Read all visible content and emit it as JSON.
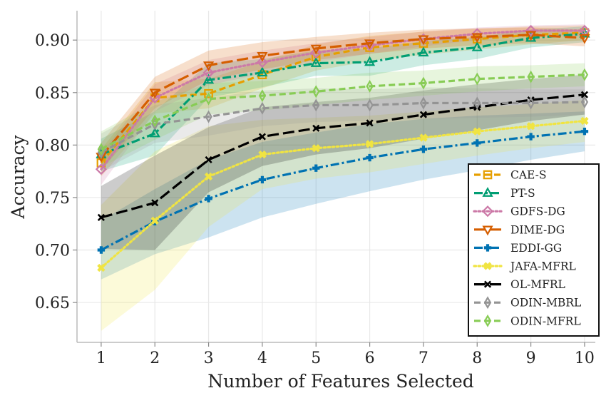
{
  "chart_data": {
    "type": "line",
    "title": "",
    "xlabel": "Number of Features Selected",
    "ylabel": "Accuracy",
    "x": [
      1,
      2,
      3,
      4,
      5,
      6,
      7,
      8,
      9,
      10
    ],
    "xlim": [
      0.55,
      10.2
    ],
    "ylim": [
      0.612,
      0.928
    ],
    "x_ticks": [
      "1",
      "2",
      "3",
      "4",
      "5",
      "6",
      "7",
      "8",
      "9",
      "10"
    ],
    "y_ticks": [
      0.65,
      0.7,
      0.75,
      0.8,
      0.85,
      0.9
    ],
    "y_tick_labels": [
      "0.65",
      "0.70",
      "0.75",
      "0.80",
      "0.85",
      "0.90"
    ],
    "grid": true,
    "legend_position": "lower-right",
    "series": [
      {
        "name": "CAE-S",
        "color": "#e69f00",
        "dash": "dashed",
        "marker": "square",
        "values": [
          0.783,
          0.845,
          0.849,
          0.867,
          0.884,
          0.893,
          0.897,
          0.901,
          0.905,
          0.907
        ],
        "lower": [
          0.77,
          0.83,
          0.835,
          0.854,
          0.871,
          0.88,
          0.886,
          0.891,
          0.896,
          0.9
        ],
        "upper": [
          0.796,
          0.86,
          0.863,
          0.88,
          0.896,
          0.904,
          0.908,
          0.911,
          0.913,
          0.914
        ]
      },
      {
        "name": "PT-S",
        "color": "#009e73",
        "dash": "dashdot",
        "marker": "triangle-up",
        "values": [
          0.791,
          0.811,
          0.862,
          0.869,
          0.878,
          0.879,
          0.888,
          0.893,
          0.902,
          0.906
        ],
        "lower": [
          0.775,
          0.79,
          0.845,
          0.855,
          0.866,
          0.866,
          0.876,
          0.882,
          0.893,
          0.898
        ],
        "upper": [
          0.806,
          0.832,
          0.878,
          0.882,
          0.89,
          0.892,
          0.899,
          0.903,
          0.91,
          0.913
        ]
      },
      {
        "name": "GDFS-DG",
        "color": "#cc79a7",
        "dash": "dotted",
        "marker": "diamond",
        "values": [
          0.777,
          0.845,
          0.869,
          0.879,
          0.888,
          0.895,
          0.901,
          0.906,
          0.909,
          0.909
        ],
        "lower": [
          0.762,
          0.832,
          0.857,
          0.868,
          0.879,
          0.887,
          0.894,
          0.9,
          0.904,
          0.904
        ],
        "upper": [
          0.792,
          0.858,
          0.881,
          0.89,
          0.897,
          0.903,
          0.908,
          0.912,
          0.914,
          0.915
        ]
      },
      {
        "name": "DIME-DG",
        "color": "#d55e00",
        "dash": "longdash",
        "marker": "triangle-down",
        "values": [
          0.789,
          0.85,
          0.876,
          0.885,
          0.892,
          0.897,
          0.901,
          0.903,
          0.905,
          0.902
        ],
        "lower": [
          0.776,
          0.835,
          0.862,
          0.872,
          0.881,
          0.887,
          0.892,
          0.895,
          0.897,
          0.894
        ],
        "upper": [
          0.802,
          0.865,
          0.89,
          0.898,
          0.903,
          0.907,
          0.91,
          0.911,
          0.912,
          0.91
        ]
      },
      {
        "name": "EDDI-GG",
        "color": "#0072b2",
        "dash": "dashdot",
        "marker": "plus",
        "values": [
          0.7,
          0.727,
          0.749,
          0.767,
          0.778,
          0.788,
          0.796,
          0.802,
          0.808,
          0.813
        ],
        "lower": [
          0.672,
          0.696,
          0.712,
          0.731,
          0.744,
          0.756,
          0.767,
          0.776,
          0.786,
          0.794
        ],
        "upper": [
          0.728,
          0.758,
          0.786,
          0.803,
          0.812,
          0.82,
          0.825,
          0.828,
          0.83,
          0.832
        ]
      },
      {
        "name": "JAFA-MFRL",
        "color": "#f0e442",
        "dash": "dotted",
        "marker": "cross",
        "values": [
          0.683,
          0.728,
          0.77,
          0.791,
          0.797,
          0.801,
          0.807,
          0.813,
          0.818,
          0.823
        ],
        "lower": [
          0.623,
          0.662,
          0.722,
          0.758,
          0.768,
          0.774,
          0.782,
          0.79,
          0.797,
          0.803
        ],
        "upper": [
          0.743,
          0.794,
          0.818,
          0.824,
          0.826,
          0.828,
          0.832,
          0.836,
          0.839,
          0.843
        ]
      },
      {
        "name": "OL-MFRL",
        "color": "#000000",
        "dash": "longdash",
        "marker": "x",
        "values": [
          0.731,
          0.745,
          0.786,
          0.808,
          0.816,
          0.821,
          0.829,
          0.836,
          0.843,
          0.848
        ],
        "lower": [
          0.701,
          0.7,
          0.755,
          0.78,
          0.791,
          0.797,
          0.806,
          0.814,
          0.823,
          0.829
        ],
        "upper": [
          0.761,
          0.79,
          0.817,
          0.836,
          0.841,
          0.845,
          0.852,
          0.858,
          0.863,
          0.867
        ]
      },
      {
        "name": "ODIN-MBRL",
        "color": "#949494",
        "dash": "dashed",
        "marker": "thin-diamond",
        "values": [
          0.793,
          0.82,
          0.827,
          0.835,
          0.838,
          0.838,
          0.84,
          0.84,
          0.84,
          0.841
        ],
        "lower": [
          0.775,
          0.802,
          0.809,
          0.818,
          0.822,
          0.823,
          0.825,
          0.826,
          0.827,
          0.829
        ],
        "upper": [
          0.811,
          0.838,
          0.845,
          0.852,
          0.854,
          0.853,
          0.855,
          0.854,
          0.853,
          0.853
        ]
      },
      {
        "name": "ODIN-MFRL",
        "color": "#88cc55",
        "dash": "dashed",
        "marker": "thin-diamond",
        "values": [
          0.796,
          0.823,
          0.844,
          0.847,
          0.851,
          0.856,
          0.859,
          0.863,
          0.865,
          0.867
        ],
        "lower": [
          0.779,
          0.805,
          0.829,
          0.833,
          0.838,
          0.843,
          0.847,
          0.851,
          0.854,
          0.856
        ],
        "upper": [
          0.813,
          0.841,
          0.859,
          0.861,
          0.864,
          0.869,
          0.871,
          0.875,
          0.876,
          0.878
        ]
      }
    ]
  }
}
